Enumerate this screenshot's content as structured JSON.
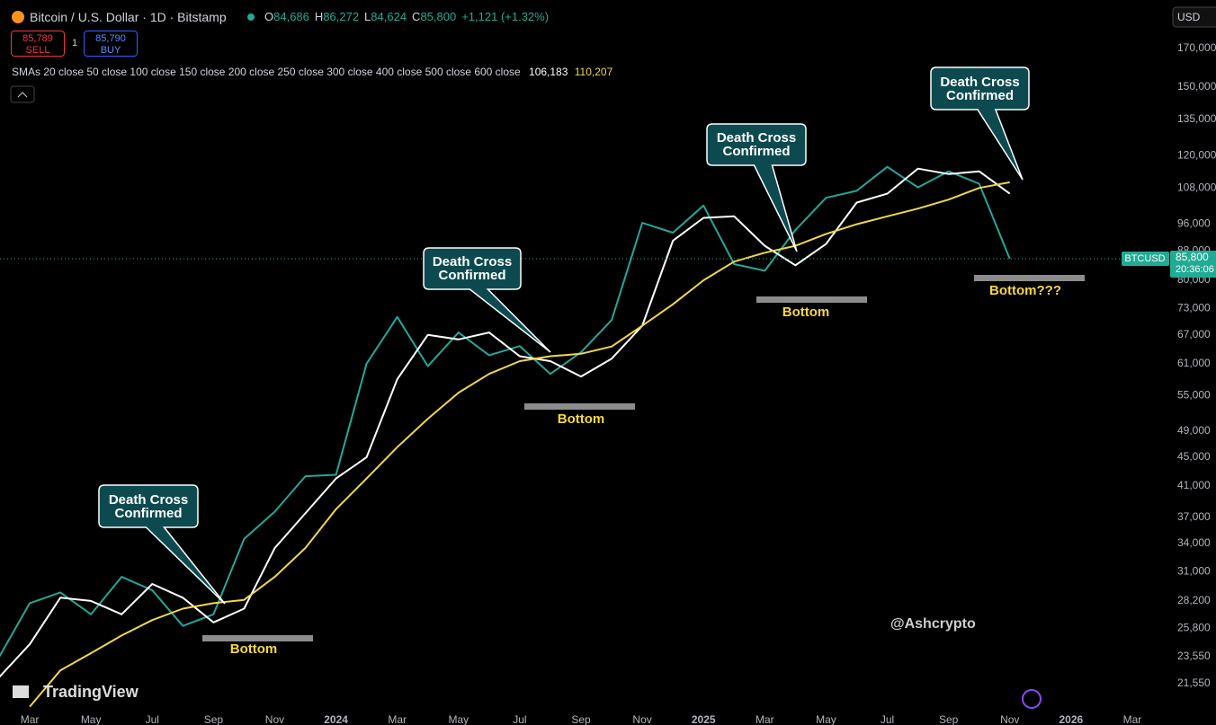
{
  "header": {
    "title": "Bitcoin / U.S. Dollar · 1D · Bitstamp",
    "ohlc": [
      {
        "label": "O",
        "value": "84,686"
      },
      {
        "label": "H",
        "value": "86,272"
      },
      {
        "label": "L",
        "value": "84,624"
      },
      {
        "label": "C",
        "value": "85,800"
      }
    ],
    "change": "+1,121 (+1.32%)",
    "sell": {
      "price": "85,789",
      "label": "SELL"
    },
    "quantity": "1",
    "buy": {
      "price": "85,790",
      "label": "BUY"
    },
    "indicator": "SMAs 20 close 50 close 100 close 150 close 200 close 250 close 300 close 400 close 500 close 600 close",
    "indicator_values": [
      "106,183",
      "110,207"
    ],
    "currency": "USD",
    "watermark": "@Ashcrypto",
    "logo": "TradingView"
  },
  "chart_data": {
    "type": "line",
    "log_scale": true,
    "grid": false,
    "ylim": [
      19800,
      199000
    ],
    "yticks": [
      {
        "value": 170000,
        "label": "170,000"
      },
      {
        "value": 150000,
        "label": "150,000"
      },
      {
        "value": 135000,
        "label": "135,000"
      },
      {
        "value": 120000,
        "label": "120,000"
      },
      {
        "value": 108000,
        "label": "108,000"
      },
      {
        "value": 96000,
        "label": "96,000"
      },
      {
        "value": 88000,
        "label": "88,000"
      },
      {
        "value": 80000,
        "label": "80,000"
      },
      {
        "value": 73000,
        "label": "73,000"
      },
      {
        "value": 67000,
        "label": "67,000"
      },
      {
        "value": 61000,
        "label": "61,000"
      },
      {
        "value": 55000,
        "label": "55,000"
      },
      {
        "value": 49000,
        "label": "49,000"
      },
      {
        "value": 45000,
        "label": "45,000"
      },
      {
        "value": 41000,
        "label": "41,000"
      },
      {
        "value": 37000,
        "label": "37,000"
      },
      {
        "value": 34000,
        "label": "34,000"
      },
      {
        "value": 31000,
        "label": "31,000"
      },
      {
        "value": 28200,
        "label": "28,200"
      },
      {
        "value": 25800,
        "label": "25,800"
      },
      {
        "value": 23550,
        "label": "23,550"
      },
      {
        "value": 21550,
        "label": "21,550"
      }
    ],
    "xlim": [
      "2023-02",
      "2026-04"
    ],
    "xticks": [
      {
        "value": "2023-03",
        "label": "Mar"
      },
      {
        "value": "2023-05",
        "label": "May"
      },
      {
        "value": "2023-07",
        "label": "Jul"
      },
      {
        "value": "2023-09",
        "label": "Sep"
      },
      {
        "value": "2023-11",
        "label": "Nov"
      },
      {
        "value": "2024-01",
        "label": "2024"
      },
      {
        "value": "2024-03",
        "label": "Mar"
      },
      {
        "value": "2024-05",
        "label": "May"
      },
      {
        "value": "2024-07",
        "label": "Jul"
      },
      {
        "value": "2024-09",
        "label": "Sep"
      },
      {
        "value": "2024-11",
        "label": "Nov"
      },
      {
        "value": "2025-01",
        "label": "2025"
      },
      {
        "value": "2025-03",
        "label": "Mar"
      },
      {
        "value": "2025-05",
        "label": "May"
      },
      {
        "value": "2025-07",
        "label": "Jul"
      },
      {
        "value": "2025-09",
        "label": "Sep"
      },
      {
        "value": "2025-11",
        "label": "Nov"
      },
      {
        "value": "2026-01",
        "label": "2026"
      },
      {
        "value": "2026-03",
        "label": "Mar"
      }
    ],
    "x": [
      "2023-02",
      "2023-03",
      "2023-04",
      "2023-05",
      "2023-06",
      "2023-07",
      "2023-08",
      "2023-09",
      "2023-10",
      "2023-11",
      "2023-12",
      "2024-01",
      "2024-02",
      "2024-03",
      "2024-04",
      "2024-05",
      "2024-06",
      "2024-07",
      "2024-08",
      "2024-09",
      "2024-10",
      "2024-11",
      "2024-12",
      "2025-01",
      "2025-02",
      "2025-03",
      "2025-04",
      "2025-05",
      "2025-06",
      "2025-07",
      "2025-08",
      "2025-09",
      "2025-10",
      "2025-11"
    ],
    "series": [
      {
        "color": "#26a69a",
        "values": [
          23500,
          28000,
          29000,
          27000,
          30500,
          29200,
          26000,
          27000,
          34500,
          37700,
          42300,
          42500,
          61000,
          71000,
          60500,
          67500,
          62700,
          64600,
          59000,
          63300,
          70300,
          96400,
          93400,
          102000,
          84300,
          82500,
          94200,
          104600,
          107000,
          115700,
          108200,
          114000,
          109500,
          85800
        ]
      },
      {
        "color": "#ffffff",
        "values": [
          22000,
          24500,
          28500,
          28200,
          27000,
          29800,
          28500,
          26300,
          27500,
          33500,
          37500,
          42000,
          45000,
          58000,
          67000,
          66000,
          67500,
          62500,
          61500,
          58500,
          62000,
          69000,
          91000,
          98000,
          98500,
          89500,
          84000,
          90000,
          103000,
          106000,
          115000,
          113000,
          114000,
          106000
        ]
      },
      {
        "color": "#f0d84a",
        "values": [
          null,
          20000,
          22500,
          23800,
          25200,
          26500,
          27500,
          28000,
          28300,
          30500,
          33500,
          38000,
          42000,
          46500,
          51000,
          55500,
          59000,
          61500,
          62500,
          63000,
          64500,
          69000,
          74000,
          80000,
          85000,
          87500,
          89500,
          93000,
          96000,
          98500,
          101000,
          104000,
          108000,
          110000
        ]
      }
    ],
    "last_price": {
      "value": 85800,
      "label": "85,800"
    },
    "symbol": "BTCUSD",
    "countdown": "20:36:06",
    "annotations": [
      "Death Cross Confirmed",
      "Death Cross Confirmed",
      "Death Cross Confirmed",
      "Death Cross Confirmed"
    ],
    "bottom_labels": [
      "Bottom",
      "Bottom",
      "Bottom",
      "Bottom???"
    ]
  }
}
